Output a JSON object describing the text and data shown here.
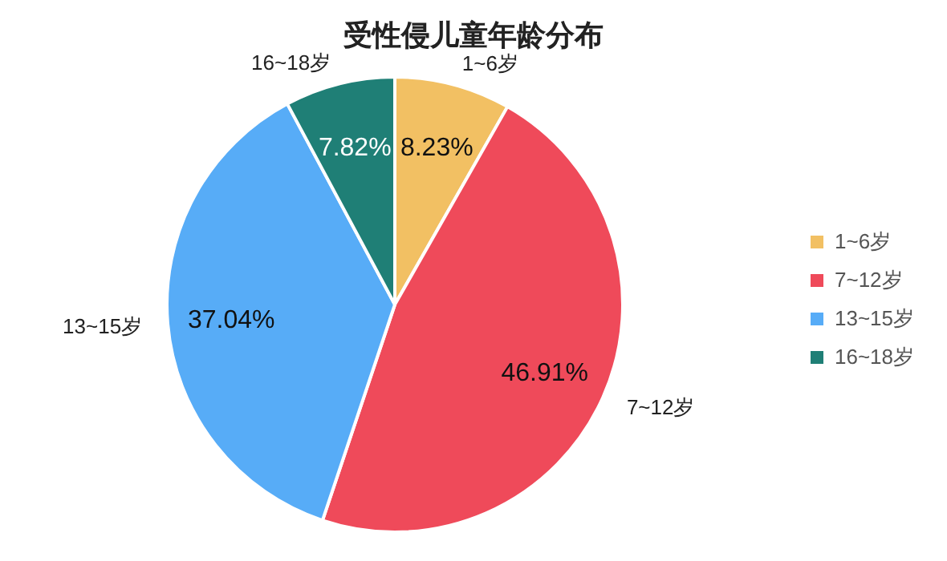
{
  "chart_data": {
    "type": "pie",
    "title": "受性侵儿童年龄分布",
    "categories": [
      "1~6岁",
      "7~12岁",
      "13~15岁",
      "16~18岁"
    ],
    "values": [
      8.23,
      46.91,
      37.04,
      7.82
    ],
    "value_labels": [
      "8.23%",
      "46.91%",
      "37.04%",
      "7.82%"
    ],
    "colors": [
      "#f2c063",
      "#ef4a5a",
      "#57acf7",
      "#1f7f76"
    ],
    "legend": "right"
  }
}
